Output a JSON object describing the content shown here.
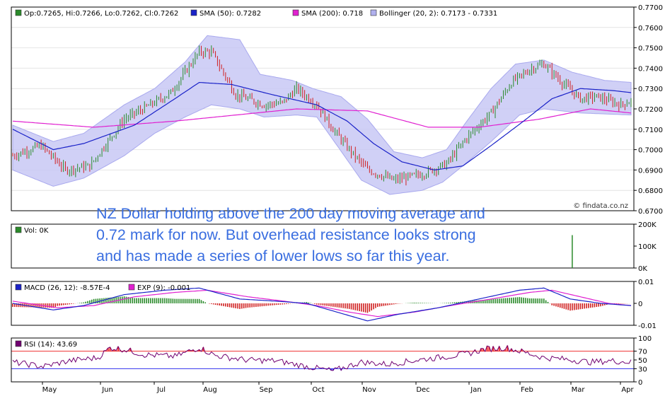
{
  "colors": {
    "candle_up": "#2a8a2a",
    "candle_down": "#d02020",
    "sma50": "#1a22c8",
    "sma200": "#e020d0",
    "band_fill": "#c8c8f4",
    "band_edge": "#a9a9ee",
    "macd": "#1a22c8",
    "exp": "#e020d0",
    "hist_pos": "#2a8a2a",
    "hist_neg": "#d02020",
    "rsi": "#700070",
    "rsi_over": "#ee3333",
    "rsi_under": "#3333ee",
    "volume": "#2a8a2a",
    "annotation": "#3a6ee0",
    "grid": "#e4e4e4"
  },
  "chart_data": [
    {
      "type": "candlestick",
      "title": "",
      "legend": [
        {
          "swatch": "#2a8a2a",
          "label": "Op:0.7265, Hi:0.7266, Lo:0.7262, Cl:0.7262"
        },
        {
          "swatch": "#1a22c8",
          "label": "SMA (50): 0.7282"
        },
        {
          "swatch": "#e020d0",
          "label": "SMA (200): 0.718"
        },
        {
          "swatch": "#b0b0ee",
          "label": "Bollinger (20, 2): 0.7173 - 0.7331"
        }
      ],
      "legend_position": "top",
      "watermark": "© findata.co.nz",
      "y_ticks": [
        "0.7700",
        "0.7600",
        "0.7500",
        "0.7400",
        "0.7300",
        "0.7200",
        "0.7100",
        "0.7000",
        "0.6900",
        "0.6800",
        "0.6700"
      ],
      "ylim": [
        0.67,
        0.77
      ],
      "grid": true,
      "price_path": [
        [
          0,
          0.697
        ],
        [
          14,
          0.702
        ],
        [
          26,
          0.69
        ],
        [
          38,
          0.692
        ],
        [
          55,
          0.715
        ],
        [
          68,
          0.722
        ],
        [
          78,
          0.728
        ],
        [
          92,
          0.748
        ],
        [
          98,
          0.748
        ],
        [
          110,
          0.727
        ],
        [
          124,
          0.722
        ],
        [
          133,
          0.723
        ],
        [
          140,
          0.73
        ],
        [
          150,
          0.722
        ],
        [
          158,
          0.71
        ],
        [
          166,
          0.7
        ],
        [
          175,
          0.69
        ],
        [
          188,
          0.685
        ],
        [
          202,
          0.688
        ],
        [
          214,
          0.693
        ],
        [
          224,
          0.706
        ],
        [
          236,
          0.718
        ],
        [
          246,
          0.733
        ],
        [
          256,
          0.74
        ],
        [
          262,
          0.742
        ],
        [
          272,
          0.732
        ],
        [
          280,
          0.725
        ],
        [
          288,
          0.726
        ],
        [
          300,
          0.722
        ],
        [
          305,
          0.724
        ]
      ],
      "sma50_path": [
        [
          0,
          0.71
        ],
        [
          20,
          0.7
        ],
        [
          35,
          0.703
        ],
        [
          60,
          0.712
        ],
        [
          80,
          0.725
        ],
        [
          92,
          0.733
        ],
        [
          108,
          0.732
        ],
        [
          128,
          0.727
        ],
        [
          150,
          0.722
        ],
        [
          165,
          0.714
        ],
        [
          178,
          0.703
        ],
        [
          192,
          0.694
        ],
        [
          208,
          0.69
        ],
        [
          222,
          0.692
        ],
        [
          236,
          0.702
        ],
        [
          252,
          0.714
        ],
        [
          266,
          0.725
        ],
        [
          280,
          0.73
        ],
        [
          296,
          0.729
        ],
        [
          305,
          0.728
        ]
      ],
      "sma200_path": [
        [
          0,
          0.714
        ],
        [
          40,
          0.711
        ],
        [
          80,
          0.714
        ],
        [
          110,
          0.717
        ],
        [
          140,
          0.72
        ],
        [
          175,
          0.719
        ],
        [
          205,
          0.711
        ],
        [
          230,
          0.711
        ],
        [
          260,
          0.715
        ],
        [
          285,
          0.72
        ],
        [
          305,
          0.718
        ]
      ],
      "bollinger_upper": [
        [
          0,
          0.712
        ],
        [
          20,
          0.704
        ],
        [
          35,
          0.708
        ],
        [
          55,
          0.722
        ],
        [
          70,
          0.73
        ],
        [
          85,
          0.743
        ],
        [
          96,
          0.756
        ],
        [
          112,
          0.754
        ],
        [
          122,
          0.737
        ],
        [
          138,
          0.734
        ],
        [
          148,
          0.73
        ],
        [
          162,
          0.726
        ],
        [
          175,
          0.715
        ],
        [
          188,
          0.699
        ],
        [
          202,
          0.696
        ],
        [
          214,
          0.7
        ],
        [
          224,
          0.714
        ],
        [
          236,
          0.73
        ],
        [
          248,
          0.742
        ],
        [
          262,
          0.744
        ],
        [
          276,
          0.738
        ],
        [
          292,
          0.734
        ],
        [
          305,
          0.733
        ]
      ],
      "bollinger_lower": [
        [
          0,
          0.69
        ],
        [
          20,
          0.682
        ],
        [
          35,
          0.686
        ],
        [
          55,
          0.697
        ],
        [
          70,
          0.708
        ],
        [
          85,
          0.716
        ],
        [
          98,
          0.722
        ],
        [
          112,
          0.72
        ],
        [
          124,
          0.716
        ],
        [
          140,
          0.717
        ],
        [
          150,
          0.716
        ],
        [
          160,
          0.702
        ],
        [
          172,
          0.685
        ],
        [
          186,
          0.678
        ],
        [
          202,
          0.68
        ],
        [
          212,
          0.684
        ],
        [
          222,
          0.692
        ],
        [
          236,
          0.704
        ],
        [
          250,
          0.717
        ],
        [
          262,
          0.72
        ],
        [
          280,
          0.718
        ],
        [
          305,
          0.717
        ]
      ]
    },
    {
      "type": "bar",
      "legend": [
        {
          "swatch": "#2a8a2a",
          "label": "Vol: 0K"
        }
      ],
      "y_ticks": [
        "200K",
        "100K",
        "0K"
      ],
      "ylim": [
        0,
        200
      ],
      "spike": {
        "x": 276,
        "value": 150
      }
    },
    {
      "type": "line",
      "legend": [
        {
          "swatch": "#1a22c8",
          "label": "MACD (26, 12): -8.57E-4"
        },
        {
          "swatch": "#e020d0",
          "label": "EXP (9): -0.001"
        }
      ],
      "y_ticks": [
        "0.01",
        "0",
        "-0.01"
      ],
      "ylim": [
        -0.01,
        0.01
      ],
      "macd_path": [
        [
          0,
          0.0
        ],
        [
          20,
          -0.003
        ],
        [
          35,
          -0.001
        ],
        [
          55,
          0.004
        ],
        [
          75,
          0.006
        ],
        [
          92,
          0.007
        ],
        [
          112,
          0.002
        ],
        [
          130,
          0.001
        ],
        [
          145,
          0.0
        ],
        [
          160,
          -0.004
        ],
        [
          175,
          -0.008
        ],
        [
          190,
          -0.005
        ],
        [
          210,
          -0.002
        ],
        [
          230,
          0.002
        ],
        [
          250,
          0.006
        ],
        [
          262,
          0.007
        ],
        [
          275,
          0.002
        ],
        [
          290,
          0.0
        ],
        [
          305,
          -0.001
        ]
      ],
      "exp_path": [
        [
          0,
          0.001
        ],
        [
          22,
          -0.002
        ],
        [
          40,
          -0.001
        ],
        [
          60,
          0.003
        ],
        [
          80,
          0.005
        ],
        [
          96,
          0.006
        ],
        [
          116,
          0.003
        ],
        [
          134,
          0.001
        ],
        [
          150,
          -0.001
        ],
        [
          166,
          -0.004
        ],
        [
          180,
          -0.006
        ],
        [
          198,
          -0.004
        ],
        [
          216,
          -0.001
        ],
        [
          236,
          0.002
        ],
        [
          255,
          0.005
        ],
        [
          266,
          0.006
        ],
        [
          280,
          0.003
        ],
        [
          294,
          0.0
        ],
        [
          305,
          -0.001
        ]
      ]
    },
    {
      "type": "line",
      "legend": [
        {
          "swatch": "#700070",
          "label": "RSI (14): 43.69"
        }
      ],
      "y_ticks": [
        "100",
        "70",
        "50",
        "30",
        "0"
      ],
      "ylim": [
        0,
        100
      ],
      "overbought": 70,
      "oversold": 30,
      "rsi_path": [
        [
          0,
          45
        ],
        [
          15,
          35
        ],
        [
          28,
          48
        ],
        [
          42,
          55
        ],
        [
          48,
          78
        ],
        [
          55,
          74
        ],
        [
          65,
          62
        ],
        [
          80,
          58
        ],
        [
          92,
          78
        ],
        [
          100,
          60
        ],
        [
          115,
          50
        ],
        [
          130,
          48
        ],
        [
          145,
          35
        ],
        [
          158,
          25
        ],
        [
          172,
          45
        ],
        [
          185,
          40
        ],
        [
          200,
          50
        ],
        [
          215,
          58
        ],
        [
          225,
          65
        ],
        [
          233,
          75
        ],
        [
          243,
          78
        ],
        [
          252,
          68
        ],
        [
          262,
          55
        ],
        [
          272,
          52
        ],
        [
          285,
          45
        ],
        [
          295,
          48
        ],
        [
          305,
          45
        ]
      ]
    }
  ],
  "x_axis": {
    "months": [
      "May",
      "Jun",
      "Jul",
      "Aug",
      "Sep",
      "Oct",
      "Nov",
      "Dec",
      "Jan",
      "Feb",
      "Mar",
      "Apr"
    ]
  },
  "annotation": {
    "line1": "NZ Dollar holding above the 200 day moving average and",
    "line2": "0.72 mark for now. But overhead resistance looks strong",
    "line3": "and has made a series of lower lows so far this year."
  }
}
